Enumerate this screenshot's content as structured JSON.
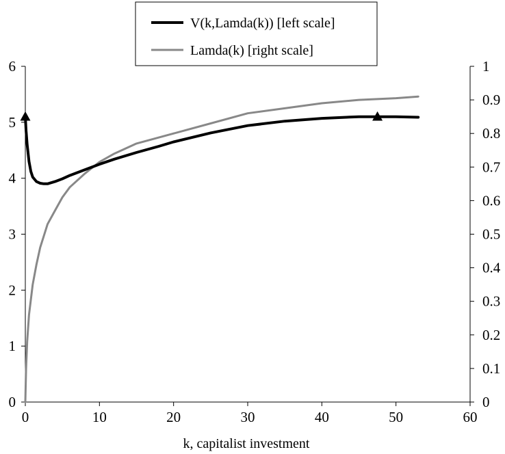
{
  "chart_data": {
    "type": "line",
    "title": "",
    "xlabel": "k, capitalist investment",
    "ylabel_left": "",
    "ylabel_right": "",
    "xlim": [
      0,
      60
    ],
    "ylim_left": [
      0,
      6
    ],
    "ylim_right": [
      0,
      1
    ],
    "x_ticks": [
      "0",
      "10",
      "20",
      "30",
      "40",
      "50",
      "60"
    ],
    "y_ticks_left": [
      "0",
      "1",
      "2",
      "3",
      "4",
      "5",
      "6"
    ],
    "y_ticks_right": [
      "0",
      "0.1",
      "0.2",
      "0.3",
      "0.4",
      "0.5",
      "0.6",
      "0.7",
      "0.8",
      "0.9",
      "1"
    ],
    "grid": false,
    "legend_position": "top-center",
    "series": [
      {
        "name": "V(k,Lamda(k))  [left scale]",
        "axis": "left",
        "color": "#000000",
        "x": [
          0,
          0.1,
          0.25,
          0.5,
          0.75,
          1,
          1.5,
          2,
          2.5,
          3,
          4,
          5,
          6,
          8,
          10,
          12,
          15,
          18,
          20,
          25,
          30,
          35,
          40,
          45,
          48,
          50,
          53
        ],
        "y": [
          5.1,
          4.85,
          4.6,
          4.3,
          4.12,
          4.02,
          3.94,
          3.91,
          3.9,
          3.9,
          3.94,
          3.99,
          4.05,
          4.15,
          4.25,
          4.34,
          4.46,
          4.57,
          4.65,
          4.81,
          4.94,
          5.02,
          5.07,
          5.1,
          5.1,
          5.1,
          5.09
        ]
      },
      {
        "name": "Lamda(k)  [right scale]",
        "axis": "right",
        "color": "#888888",
        "x": [
          0,
          0.1,
          0.25,
          0.5,
          1,
          1.5,
          2,
          3,
          4,
          5,
          6,
          8,
          10,
          12,
          15,
          20,
          25,
          30,
          35,
          40,
          45,
          50,
          53
        ],
        "y": [
          0,
          0.1,
          0.18,
          0.26,
          0.35,
          0.41,
          0.46,
          0.53,
          0.57,
          0.61,
          0.64,
          0.68,
          0.715,
          0.74,
          0.77,
          0.8,
          0.83,
          0.86,
          0.875,
          0.89,
          0.9,
          0.905,
          0.91
        ]
      }
    ],
    "markers": [
      {
        "name": "triangle-marker-left",
        "x": 0,
        "y": 5.1,
        "axis": "left"
      },
      {
        "name": "triangle-marker-right",
        "x": 47.5,
        "y": 5.1,
        "axis": "left"
      }
    ]
  }
}
